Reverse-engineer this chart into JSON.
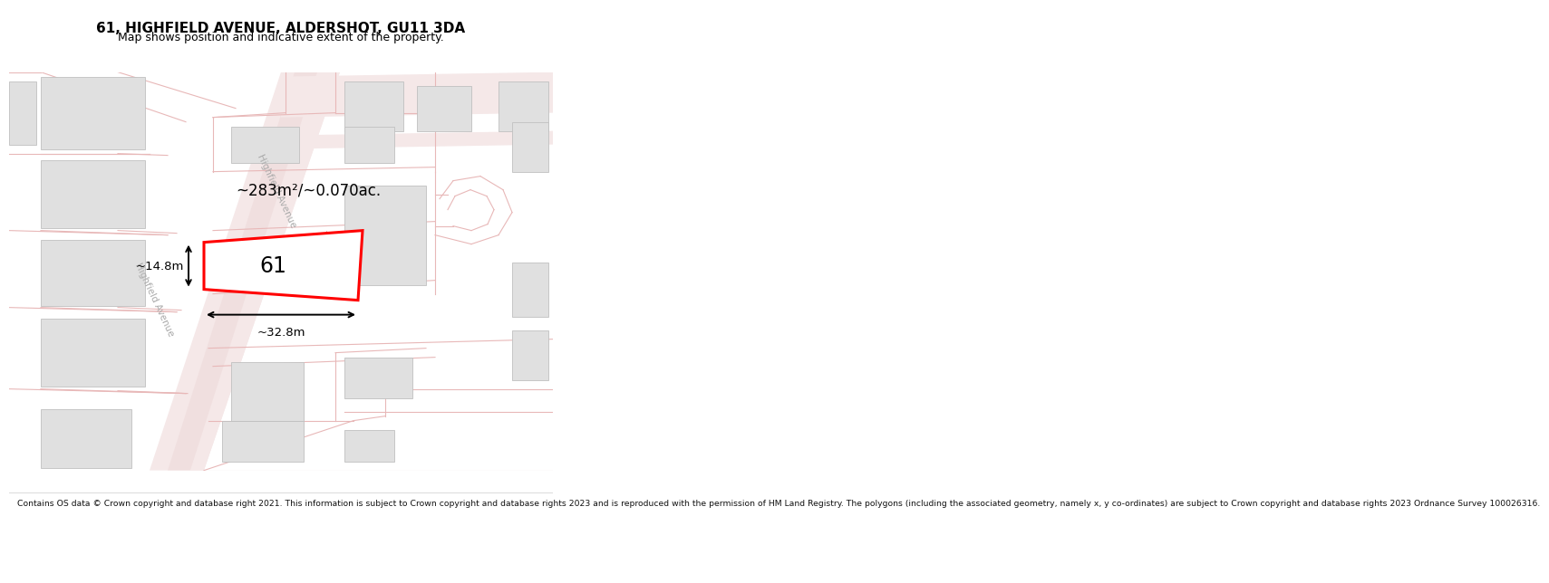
{
  "title": "61, HIGHFIELD AVENUE, ALDERSHOT, GU11 3DA",
  "subtitle": "Map shows position and indicative extent of the property.",
  "footer": "Contains OS data © Crown copyright and database right 2021. This information is subject to Crown copyright and database rights 2023 and is reproduced with the permission of HM Land Registry. The polygons (including the associated geometry, namely x, y co-ordinates) are subject to Crown copyright and database rights 2023 Ordnance Survey 100026316.",
  "area_label": "~283m²/~0.070ac.",
  "width_label": "~32.8m",
  "height_label": "~14.8m",
  "plot_number": "61",
  "bg_color": "#ffffff",
  "plot_edge_color": "#ff0000",
  "plot_lw": 2.2,
  "street_label": "Highfield Avenue",
  "dim_color": "#000000",
  "building_fill": "#e0e0e0",
  "building_edge": "#c0c0c0",
  "road_fill": "#f5e8e8",
  "road_edge": "#e8b8b8",
  "road_center_fill": "#eedada"
}
